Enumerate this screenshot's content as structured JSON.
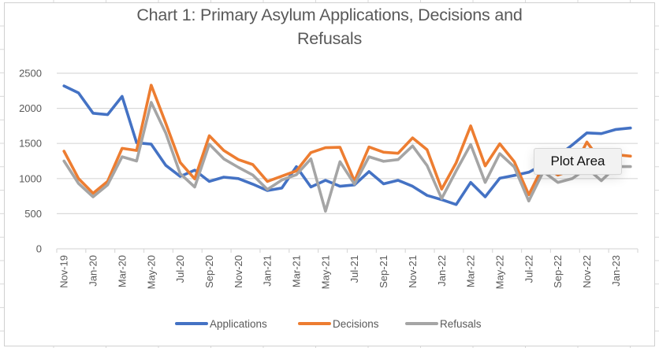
{
  "chart_data": {
    "type": "line",
    "title": "Chart 1: Primary Asylum Applications, Decisions and Refusals",
    "title_lines": [
      "Chart 1: Primary Asylum Applications, Decisions and",
      "Refusals"
    ],
    "xlabel": "",
    "ylabel": "",
    "ylim": [
      0,
      2500
    ],
    "yticks": [
      0,
      500,
      1000,
      1500,
      2000,
      2500
    ],
    "ytick_labels": [
      "0",
      "500",
      "1000",
      "1500",
      "2000",
      "2500"
    ],
    "grid": true,
    "legend_position": "bottom",
    "x": [
      "Nov-19",
      "Dec-19",
      "Jan-20",
      "Feb-20",
      "Mar-20",
      "Apr-20",
      "May-20",
      "Jun-20",
      "Jul-20",
      "Aug-20",
      "Sep-20",
      "Oct-20",
      "Nov-20",
      "Dec-20",
      "Jan-21",
      "Feb-21",
      "Mar-21",
      "Apr-21",
      "May-21",
      "Jun-21",
      "Jul-21",
      "Aug-21",
      "Sep-21",
      "Oct-21",
      "Nov-21",
      "Dec-21",
      "Jan-22",
      "Feb-22",
      "Mar-22",
      "Apr-22",
      "May-22",
      "Jun-22",
      "Jul-22",
      "Aug-22",
      "Sep-22",
      "Oct-22",
      "Nov-22",
      "Dec-22",
      "Jan-23",
      "Feb-23"
    ],
    "xtick_labels": [
      "Nov-19",
      "Jan-20",
      "Mar-20",
      "May-20",
      "Jul-20",
      "Sep-20",
      "Nov-20",
      "Jan-21",
      "Mar-21",
      "May-21",
      "Jul-21",
      "Sep-21",
      "Nov-21",
      "Jan-22",
      "Mar-22",
      "May-22",
      "Jul-22",
      "Sep-22",
      "Nov-22",
      "Jan-23"
    ],
    "series": [
      {
        "name": "Applications",
        "color": "#4472c4",
        "values": [
          2320,
          2220,
          1930,
          1910,
          2170,
          1510,
          1490,
          1190,
          1030,
          1120,
          960,
          1020,
          1000,
          920,
          830,
          865,
          1170,
          880,
          975,
          890,
          910,
          1100,
          925,
          975,
          890,
          760,
          700,
          630,
          945,
          740,
          1005,
          1045,
          1090,
          1200,
          1320,
          1480,
          1650,
          1640,
          1700,
          1720
        ]
      },
      {
        "name": "Decisions",
        "color": "#ed7d31",
        "values": [
          1390,
          1000,
          790,
          960,
          1430,
          1400,
          2330,
          1790,
          1230,
          995,
          1610,
          1400,
          1270,
          1200,
          960,
          1035,
          1110,
          1370,
          1440,
          1445,
          965,
          1450,
          1375,
          1360,
          1580,
          1410,
          850,
          1225,
          1750,
          1180,
          1495,
          1240,
          770,
          1180,
          1050,
          1120,
          1520,
          1240,
          1340,
          1320
        ]
      },
      {
        "name": "Refusals",
        "color": "#a5a5a5",
        "values": [
          1250,
          930,
          740,
          910,
          1310,
          1250,
          2085,
          1650,
          1070,
          880,
          1490,
          1280,
          1160,
          1050,
          845,
          980,
          1055,
          1280,
          535,
          1240,
          920,
          1310,
          1245,
          1270,
          1465,
          1185,
          715,
          1110,
          1485,
          945,
          1355,
          1165,
          680,
          1100,
          945,
          1000,
          1150,
          970,
          1170,
          1170
        ]
      }
    ]
  },
  "tooltip": {
    "text": "Plot Area"
  }
}
